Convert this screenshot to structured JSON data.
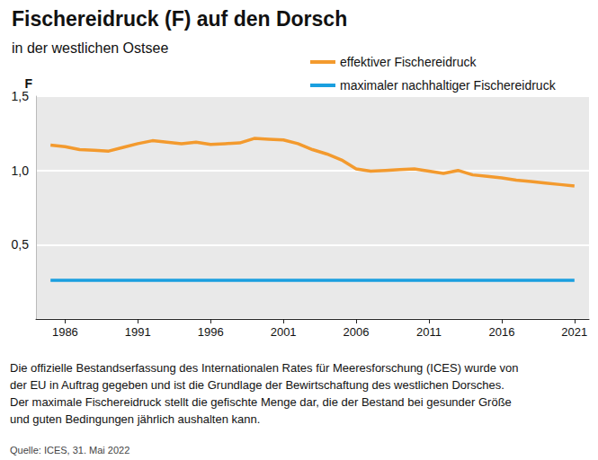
{
  "chart_data": {
    "type": "line",
    "title": "Fischereidruck (F) auf den Dorsch",
    "subtitle": "in der westlichen Ostsee",
    "y_label": "F",
    "x": [
      1985,
      1986,
      1987,
      1988,
      1989,
      1990,
      1991,
      1992,
      1993,
      1994,
      1995,
      1996,
      1997,
      1998,
      1999,
      2000,
      2001,
      2002,
      2003,
      2004,
      2005,
      2006,
      2007,
      2008,
      2009,
      2010,
      2011,
      2012,
      2013,
      2014,
      2015,
      2016,
      2017,
      2018,
      2019,
      2020,
      2021
    ],
    "series": [
      {
        "name": "effektiver Fischereidruck",
        "color": "#f39a2e",
        "line_style": "solid",
        "values": [
          1.17,
          1.16,
          1.14,
          1.135,
          1.13,
          1.155,
          1.18,
          1.2,
          1.19,
          1.18,
          1.19,
          1.175,
          1.18,
          1.185,
          1.215,
          1.21,
          1.205,
          1.18,
          1.14,
          1.11,
          1.07,
          1.01,
          0.995,
          1.0,
          1.005,
          1.01,
          0.995,
          0.98,
          1.0,
          0.97,
          0.96,
          0.95,
          0.935,
          0.925,
          0.915,
          0.905,
          0.895
        ]
      },
      {
        "name": "maximaler nachhaltiger Fischereidruck",
        "color": "#1a9fdf",
        "line_style": "solid",
        "values": [
          0.26,
          0.26,
          0.26,
          0.26,
          0.26,
          0.26,
          0.26,
          0.26,
          0.26,
          0.26,
          0.26,
          0.26,
          0.26,
          0.26,
          0.26,
          0.26,
          0.26,
          0.26,
          0.26,
          0.26,
          0.26,
          0.26,
          0.26,
          0.26,
          0.26,
          0.26,
          0.26,
          0.26,
          0.26,
          0.26,
          0.26,
          0.26,
          0.26,
          0.26,
          0.26,
          0.26,
          0.26
        ]
      }
    ],
    "xlim": [
      1984,
      2022
    ],
    "xticks": [
      1986,
      1991,
      1996,
      2001,
      2006,
      2011,
      2016,
      2021
    ],
    "ylim": [
      0,
      1.5
    ],
    "yticks": [
      {
        "value": 0.5,
        "label": "0,5"
      },
      {
        "value": 1.0,
        "label": "1,0"
      },
      {
        "value": 1.5,
        "label": "1,5"
      }
    ],
    "grid": true,
    "legend": "top-right",
    "annotations": [
      "Die offizielle Bestandserfassung des Internationalen Rates für Meeresforschung (ICES) wurde von",
      "der EU in Auftrag gegeben und ist die Grundlage der Bewirtschaftung des westlichen Dorsches.",
      "Der maximale Fischereidruck stellt die gefischte Menge dar, die der Bestand bei gesunder Größe",
      "und guten Bedingungen jährlich aushalten kann."
    ],
    "source": "Quelle: ICES, 31. Mai 2022"
  }
}
